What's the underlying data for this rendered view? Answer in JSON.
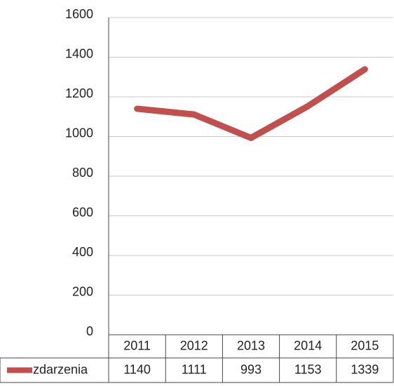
{
  "chart_data": {
    "type": "line",
    "categories": [
      "2011",
      "2012",
      "2013",
      "2014",
      "2015"
    ],
    "series": [
      {
        "name": "zdarzenia",
        "color": "#c0504d",
        "values": [
          1140,
          1111,
          993,
          1153,
          1339
        ]
      }
    ],
    "ylim": [
      0,
      1600
    ],
    "yticks": [
      0,
      200,
      400,
      600,
      800,
      1000,
      1200,
      1400,
      1600
    ],
    "grid": true,
    "data_table": true
  }
}
